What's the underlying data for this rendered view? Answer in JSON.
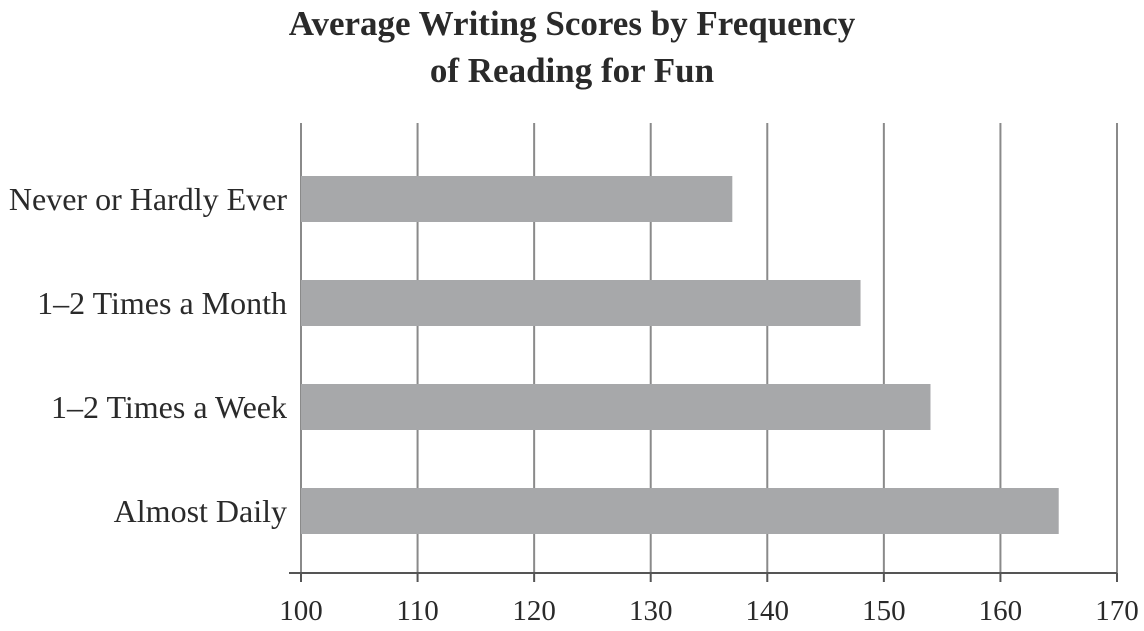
{
  "chart_data": {
    "type": "bar",
    "orientation": "horizontal",
    "title_lines": [
      "Average Writing Scores by Frequency",
      "of Reading for Fun"
    ],
    "categories": [
      "Never or Hardly Ever",
      "1–2 Times a Month",
      "1–2 Times a Week",
      "Almost Daily"
    ],
    "values": [
      137,
      148,
      154,
      165
    ],
    "xlabel": "",
    "ylabel": "",
    "xlim": [
      100,
      170
    ],
    "xticks": [
      100,
      110,
      120,
      130,
      140,
      150,
      160,
      170
    ],
    "xtick_labels": [
      "100",
      "110",
      "120",
      "130",
      "140",
      "150",
      "160",
      "170"
    ],
    "grid": true,
    "legend": "none",
    "colors": {
      "bar": "#a7a8aa",
      "grid": "#8a8a8a",
      "axis": "#555555",
      "text": "#2a2a2a"
    }
  }
}
